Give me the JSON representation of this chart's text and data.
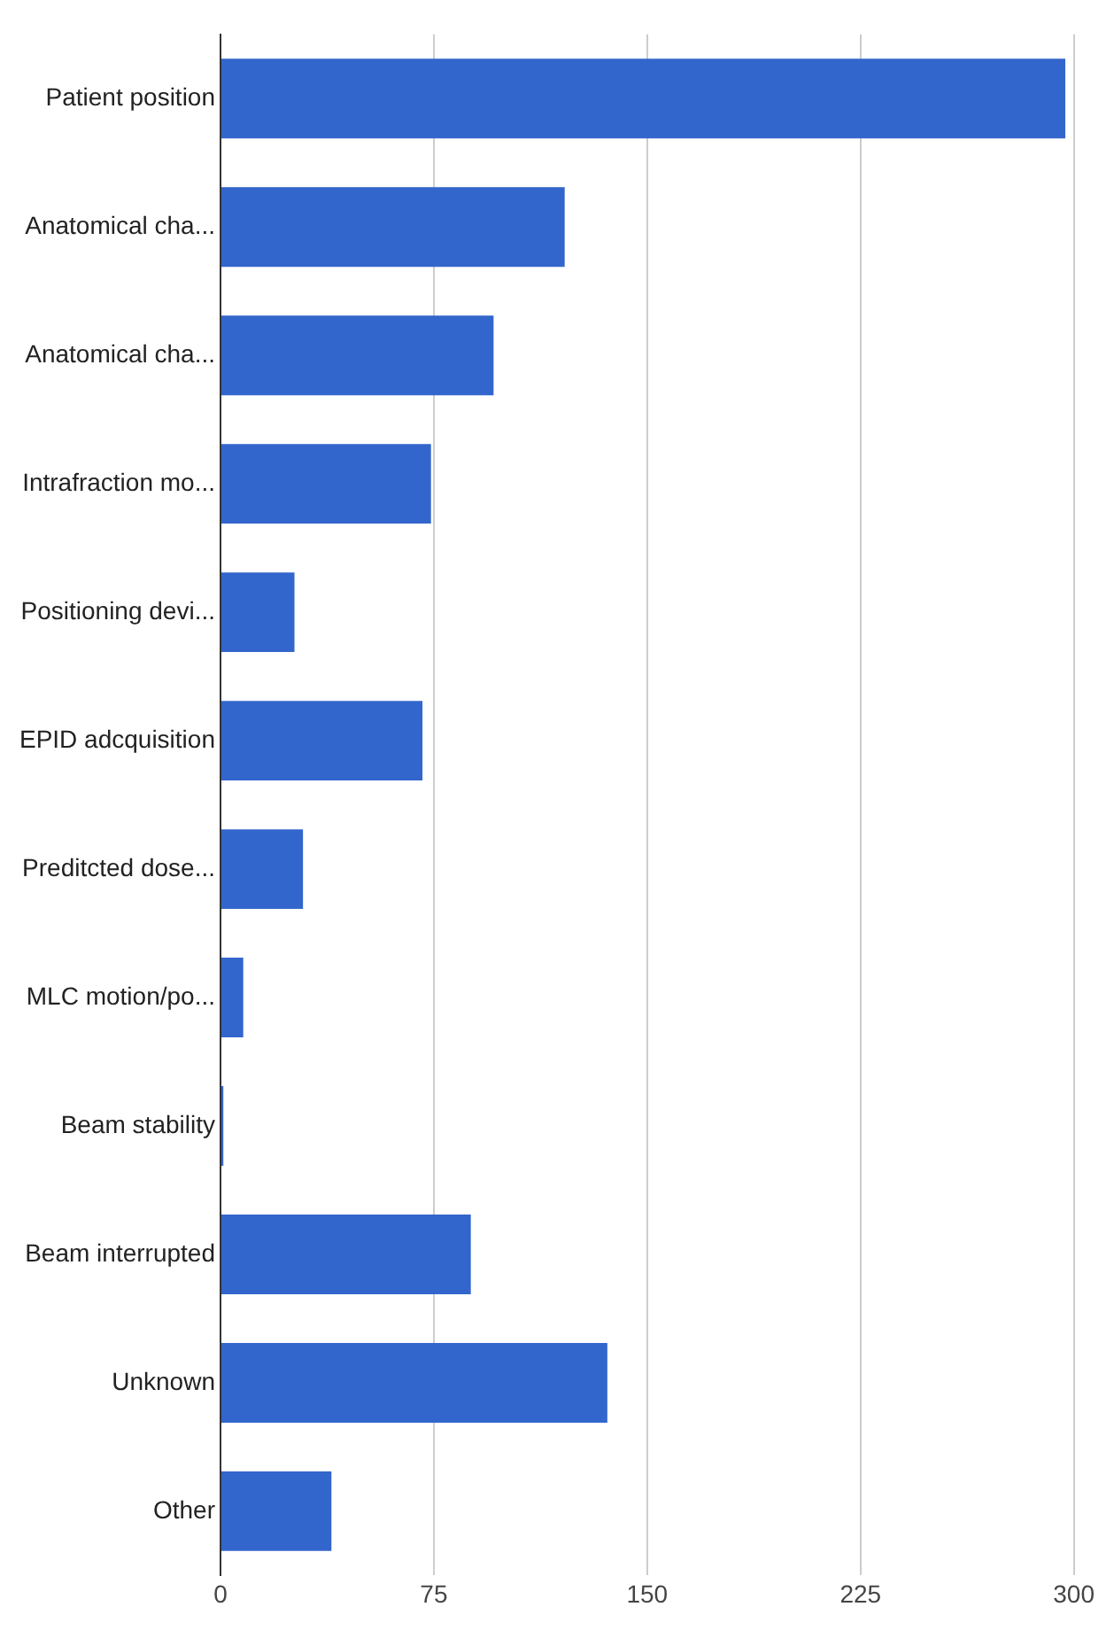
{
  "chart_data": {
    "type": "bar",
    "orientation": "horizontal",
    "categories": [
      "Patient position",
      "Anatomical cha...",
      "Anatomical cha...",
      "Intrafraction mo...",
      "Positioning devi...",
      "EPID adcquisition",
      "Preditcted dose...",
      "MLC motion/po...",
      "Beam stability",
      "Beam interrupted",
      "Unknown",
      "Other"
    ],
    "values": [
      297,
      121,
      96,
      74,
      26,
      71,
      29,
      8,
      1,
      88,
      136,
      39
    ],
    "color": "#3366cc",
    "xlim": [
      0,
      300
    ],
    "xticks": [
      0,
      75,
      150,
      225,
      300
    ],
    "grid": "x",
    "legend": false
  }
}
